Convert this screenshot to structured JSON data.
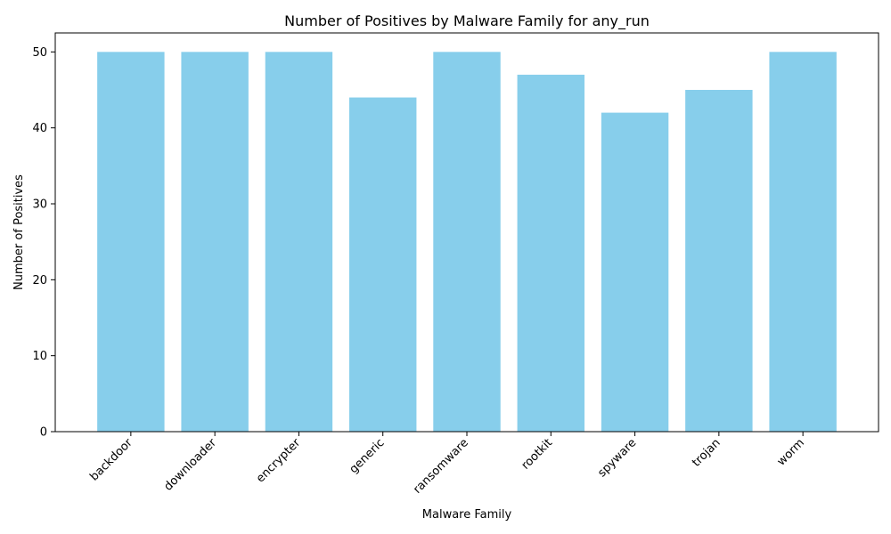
{
  "chart_data": {
    "type": "bar",
    "title": "Number of Positives by Malware Family for any_run",
    "xlabel": "Malware Family",
    "ylabel": "Number of Positives",
    "categories": [
      "backdoor",
      "downloader",
      "encrypter",
      "generic",
      "ransomware",
      "rootkit",
      "spyware",
      "trojan",
      "worm"
    ],
    "values": [
      50,
      50,
      50,
      44,
      50,
      47,
      42,
      45,
      50
    ],
    "ylim": [
      0,
      52.5
    ],
    "yticks": [
      0,
      10,
      20,
      30,
      40,
      50
    ],
    "grid": false,
    "bar_color": "#87CEEB",
    "x_tick_rotation": 45
  }
}
